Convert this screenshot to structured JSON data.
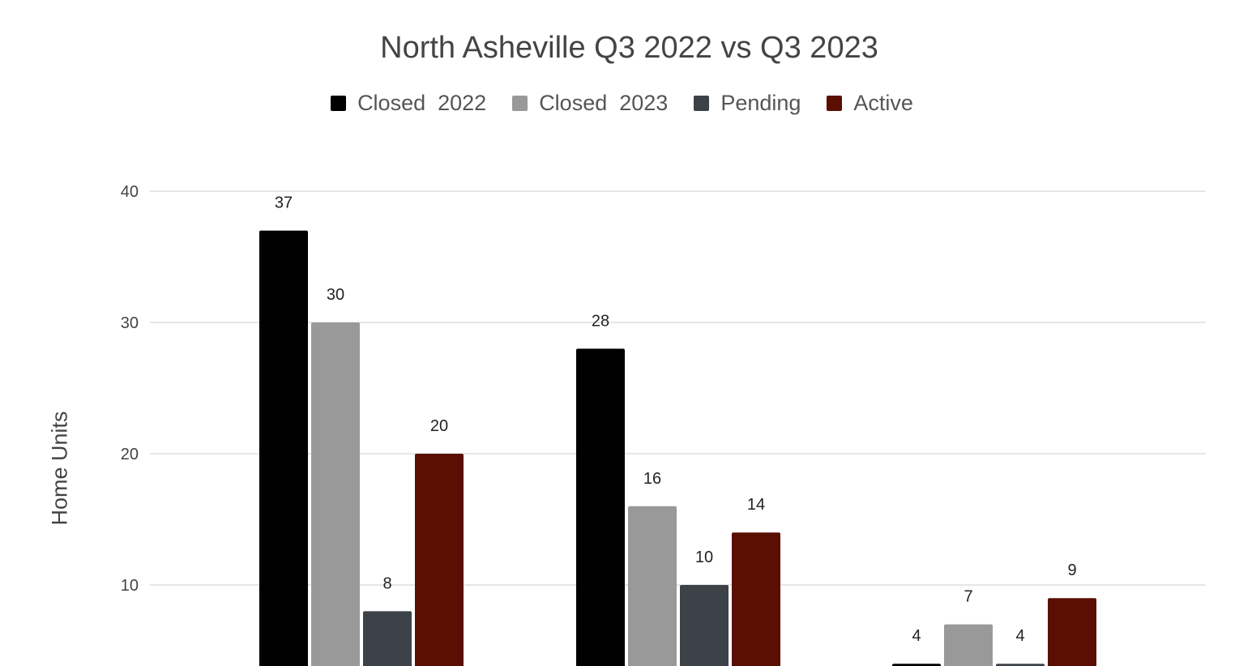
{
  "chart_data": {
    "type": "bar",
    "title": "North Asheville Q3 2022 vs Q3 2023",
    "ylabel": "Home Units",
    "xlabel": "",
    "ylim": [
      0,
      40
    ],
    "yticks": [
      10,
      20,
      30,
      40
    ],
    "grid": true,
    "legend_position": "top",
    "categories": [
      "",
      "",
      ""
    ],
    "series": [
      {
        "name": "Closed  2022",
        "color": "#000000",
        "values": [
          37,
          28,
          4
        ]
      },
      {
        "name": "Closed  2023",
        "color": "#999999",
        "values": [
          30,
          16,
          7
        ]
      },
      {
        "name": "Pending",
        "color": "#3c4248",
        "values": [
          8,
          10,
          4
        ]
      },
      {
        "name": "Active",
        "color": "#5a0f02",
        "values": [
          20,
          14,
          9
        ]
      }
    ]
  }
}
